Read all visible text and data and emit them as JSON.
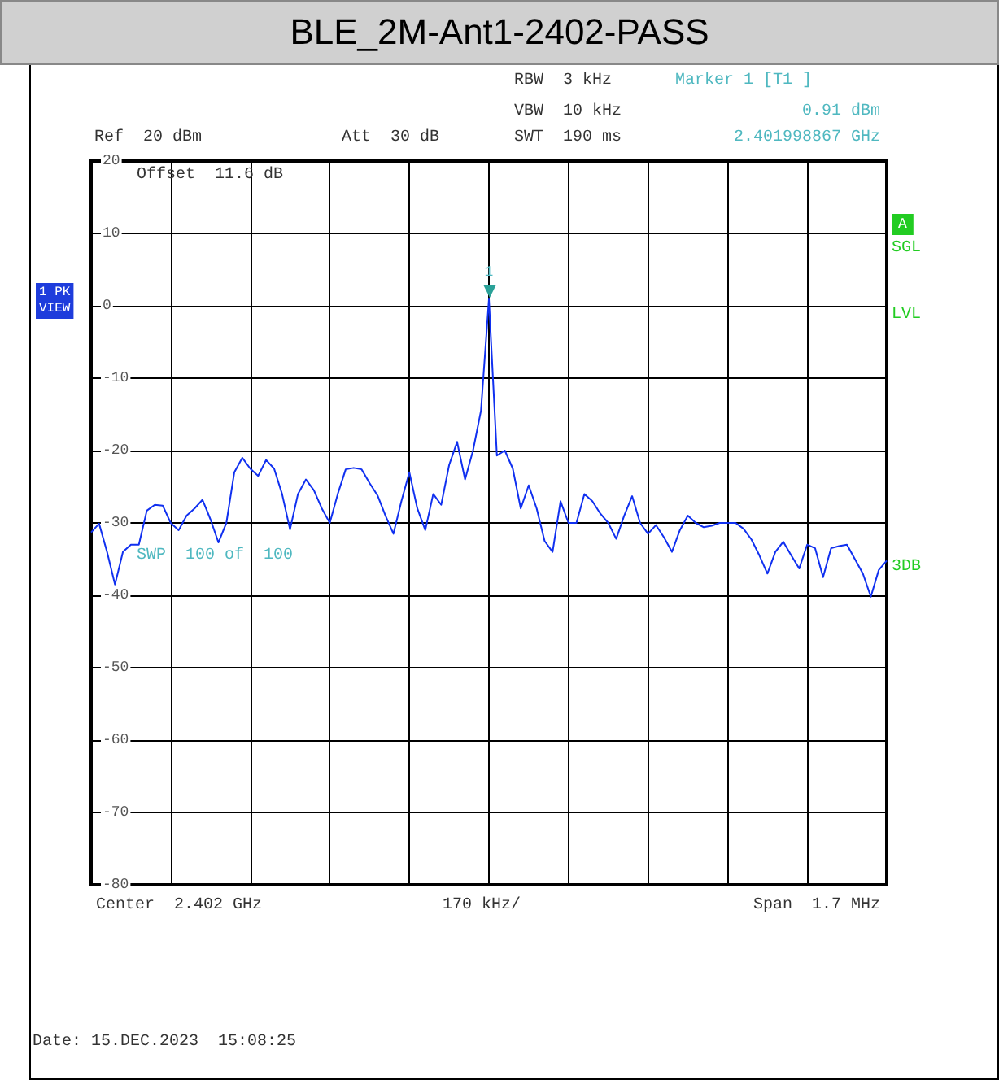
{
  "chart_data": {
    "type": "line",
    "title": "BLE_2M-Ant1-2402-PASS",
    "categories": [
      null,
      null,
      null,
      null,
      null,
      null,
      null,
      null,
      null,
      null,
      null,
      null,
      null,
      null,
      null,
      null,
      null,
      null,
      null,
      null,
      null,
      null,
      null,
      null,
      null,
      null,
      null,
      null,
      null,
      null,
      null,
      null,
      null,
      null,
      null,
      null,
      null,
      null,
      null,
      null,
      null,
      null,
      null,
      null,
      null,
      null,
      null,
      null,
      null,
      null,
      null,
      null,
      null,
      null,
      null,
      null,
      null,
      null,
      null,
      null,
      null,
      null,
      null,
      null,
      null,
      null,
      null,
      null,
      null,
      null,
      null,
      null,
      null,
      null,
      null,
      null,
      null,
      null,
      null,
      null,
      null,
      null,
      null,
      null,
      null,
      null,
      null,
      null,
      null,
      null,
      null,
      null,
      null,
      null,
      null,
      null,
      null,
      null,
      null,
      null,
      null
    ],
    "ylim": [
      -80,
      20
    ],
    "yticks": [
      -80,
      -70,
      -60,
      -50,
      -40,
      -30,
      -20,
      -10,
      0,
      10,
      20
    ],
    "tick_labels": "y",
    "grid": true,
    "marker": "none",
    "line_style": "solid",
    "series": [
      {
        "color": "#1030f0",
        "values": [
          -31.3,
          -30.1,
          -34,
          -38.5,
          -34,
          -33,
          -33,
          -28.3,
          -27.5,
          -27.6,
          -30,
          -31,
          -29,
          -28,
          -26.8,
          -29.5,
          -32.7,
          -30,
          -23,
          -21,
          -22.5,
          -23.5,
          -21.3,
          -22.5,
          -26,
          -30.9,
          -26,
          -24,
          -25.5,
          -28,
          -30,
          -26,
          -22.6,
          -22.4,
          -22.6,
          -24.5,
          -26.2,
          -29,
          -31.5,
          -27,
          -23,
          -28,
          -31,
          -26,
          -27.5,
          -22,
          -18.8,
          -24,
          -20,
          -14.5,
          0.91,
          -20.7,
          -20,
          -22.5,
          -28,
          -24.8,
          -28,
          -32.5,
          -34,
          -27,
          -30,
          -30,
          -26,
          -27,
          -28.7,
          -30,
          -32.2,
          -29,
          -26.3,
          -30,
          -31.5,
          -30.3,
          -32,
          -34,
          -31,
          -29,
          -30,
          -30.6,
          -30.4,
          -30,
          -30,
          -30,
          -30.8,
          -32.3,
          -34.5,
          -37,
          -34,
          -32.6,
          -34.5,
          -36.3,
          -33,
          -33.5,
          -37.5,
          -33.5,
          -33.2,
          -33,
          -35,
          -37,
          -40.2,
          -36.5,
          -35.2
        ]
      }
    ],
    "annotations": [
      {
        "text": "1",
        "y": 0.91
      },
      "RBW  3 kHz",
      "VBW  10 kHz",
      "SWT  190 ms",
      "Ref  20 dBm",
      "Att  30 dB",
      "Offset  11.6 dB",
      "Marker 1 [T1 ]",
      "0.91 dBm",
      "2.401998867 GHz",
      "1 PK\nVIEW",
      "A",
      "SGL",
      "LVL",
      "3DB",
      "SWP  100 of  100",
      "Center  2.402 GHz",
      "170 kHz/",
      "Span  1.7 MHz",
      "Date: 15.DEC.2023  15:08:25"
    ]
  }
}
